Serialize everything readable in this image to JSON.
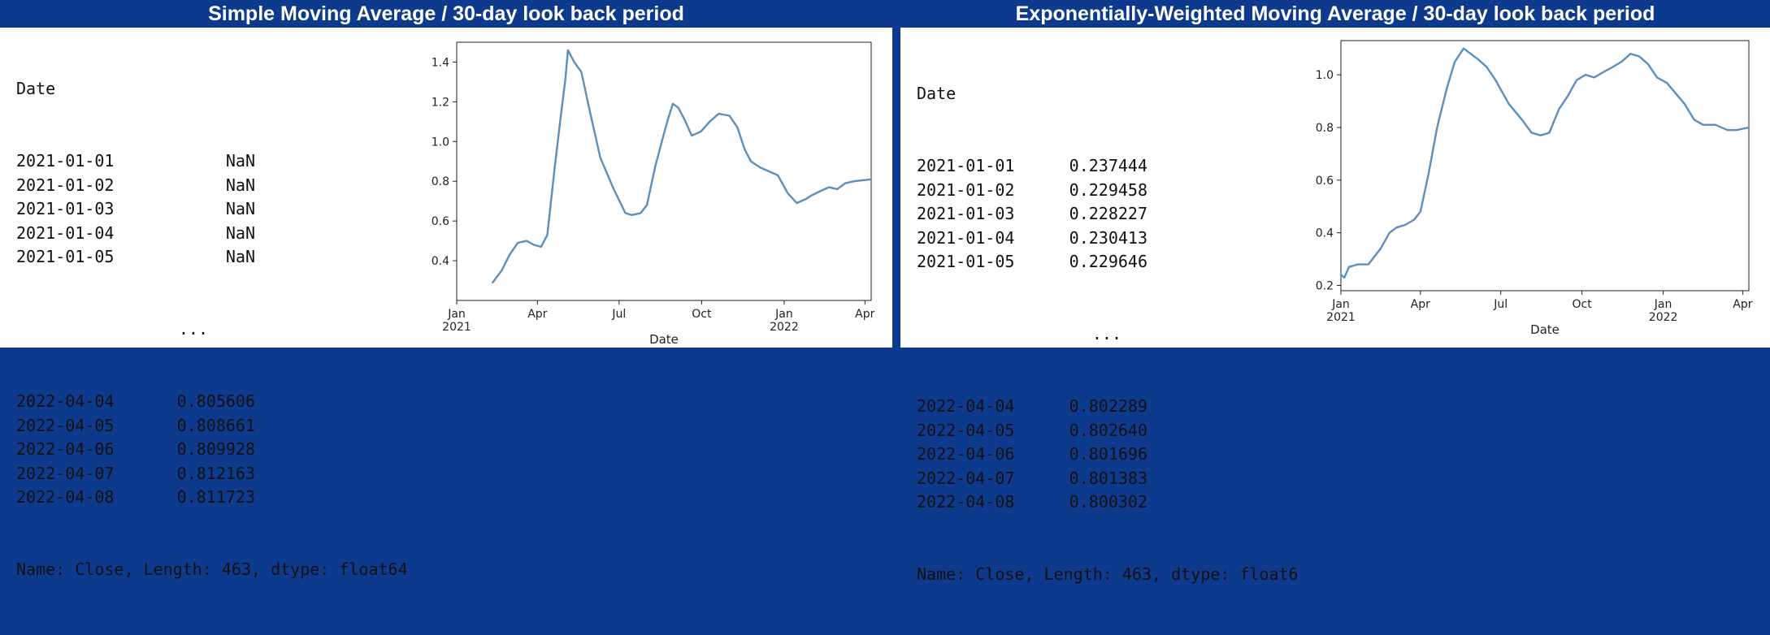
{
  "panels": [
    {
      "title": "Simple Moving Average / 30-day look back period",
      "output": {
        "index_name": "Date",
        "head": [
          {
            "date": "2021-01-01",
            "value": "NaN"
          },
          {
            "date": "2021-01-02",
            "value": "NaN"
          },
          {
            "date": "2021-01-03",
            "value": "NaN"
          },
          {
            "date": "2021-01-04",
            "value": "NaN"
          },
          {
            "date": "2021-01-05",
            "value": "NaN"
          }
        ],
        "ellipsis": "...",
        "tail": [
          {
            "date": "2022-04-04",
            "value": "0.805606"
          },
          {
            "date": "2022-04-05",
            "value": "0.808661"
          },
          {
            "date": "2022-04-06",
            "value": "0.809928"
          },
          {
            "date": "2022-04-07",
            "value": "0.812163"
          },
          {
            "date": "2022-04-08",
            "value": "0.811723"
          }
        ],
        "footer": "Name: Close, Length: 463, dtype: float64"
      }
    },
    {
      "title": "Exponentially-Weighted  Moving Average / 30-day look back period",
      "output": {
        "index_name": "Date",
        "head": [
          {
            "date": "2021-01-01",
            "value": "0.237444"
          },
          {
            "date": "2021-01-02",
            "value": "0.229458"
          },
          {
            "date": "2021-01-03",
            "value": "0.228227"
          },
          {
            "date": "2021-01-04",
            "value": "0.230413"
          },
          {
            "date": "2021-01-05",
            "value": "0.229646"
          }
        ],
        "ellipsis": "...",
        "tail": [
          {
            "date": "2022-04-04",
            "value": "0.802289"
          },
          {
            "date": "2022-04-05",
            "value": "0.802640"
          },
          {
            "date": "2022-04-06",
            "value": "0.801696"
          },
          {
            "date": "2022-04-07",
            "value": "0.801383"
          },
          {
            "date": "2022-04-08",
            "value": "0.800302"
          }
        ],
        "footer": "Name: Close, Length: 463, dtype: float6"
      }
    }
  ],
  "colors": {
    "banner": "#0e3a8e",
    "line": "#5b8fbd"
  },
  "chart_data": [
    {
      "type": "line",
      "xlabel": "Date",
      "ylabel": "",
      "xlim": [
        "2021-01-01",
        "2022-04-08"
      ],
      "ylim": [
        0.2,
        1.5
      ],
      "yticks": [
        0.4,
        0.6,
        0.8,
        1.0,
        1.2,
        1.4
      ],
      "ytick_labels": [
        "0.4",
        "0.6",
        "0.8",
        "1.0",
        "1.2",
        "1.4"
      ],
      "xticks": [
        {
          "date": "2021-01-01",
          "label": "Jan",
          "sublabel": "2021"
        },
        {
          "date": "2021-04-01",
          "label": "Apr",
          "sublabel": ""
        },
        {
          "date": "2021-07-01",
          "label": "Jul",
          "sublabel": ""
        },
        {
          "date": "2021-10-01",
          "label": "Oct",
          "sublabel": ""
        },
        {
          "date": "2022-01-01",
          "label": "Jan",
          "sublabel": "2022"
        },
        {
          "date": "2022-04-01",
          "label": "Apr",
          "sublabel": ""
        }
      ],
      "grid": false,
      "x": [
        "2021-02-10",
        "2021-02-20",
        "2021-03-01",
        "2021-03-10",
        "2021-03-20",
        "2021-03-28",
        "2021-04-05",
        "2021-04-12",
        "2021-04-20",
        "2021-04-27",
        "2021-05-02",
        "2021-05-05",
        "2021-05-12",
        "2021-05-20",
        "2021-05-28",
        "2021-06-10",
        "2021-06-25",
        "2021-07-08",
        "2021-07-15",
        "2021-07-25",
        "2021-08-01",
        "2021-08-10",
        "2021-08-20",
        "2021-08-25",
        "2021-08-30",
        "2021-09-05",
        "2021-09-12",
        "2021-09-20",
        "2021-09-30",
        "2021-10-10",
        "2021-10-20",
        "2021-11-01",
        "2021-11-10",
        "2021-11-18",
        "2021-11-25",
        "2021-12-05",
        "2021-12-15",
        "2021-12-25",
        "2022-01-05",
        "2022-01-15",
        "2022-01-25",
        "2022-02-01",
        "2022-02-10",
        "2022-02-20",
        "2022-03-01",
        "2022-03-10",
        "2022-03-20",
        "2022-04-08"
      ],
      "series": [
        {
          "values": [
            0.29,
            0.35,
            0.43,
            0.49,
            0.5,
            0.48,
            0.47,
            0.53,
            0.86,
            1.13,
            1.31,
            1.46,
            1.4,
            1.35,
            1.18,
            0.92,
            0.76,
            0.64,
            0.63,
            0.64,
            0.68,
            0.87,
            1.04,
            1.12,
            1.19,
            1.17,
            1.11,
            1.03,
            1.05,
            1.1,
            1.14,
            1.13,
            1.07,
            0.96,
            0.9,
            0.87,
            0.85,
            0.83,
            0.74,
            0.69,
            0.71,
            0.73,
            0.75,
            0.77,
            0.76,
            0.79,
            0.8,
            0.81
          ]
        }
      ]
    },
    {
      "type": "line",
      "xlabel": "Date",
      "ylabel": "",
      "xlim": [
        "2021-01-01",
        "2022-04-08"
      ],
      "ylim": [
        0.18,
        1.13
      ],
      "yticks": [
        0.2,
        0.4,
        0.6,
        0.8,
        1.0
      ],
      "ytick_labels": [
        "0.2",
        "0.4",
        "0.6",
        "0.8",
        "1.0"
      ],
      "xticks": [
        {
          "date": "2021-01-01",
          "label": "Jan",
          "sublabel": "2021"
        },
        {
          "date": "2021-04-01",
          "label": "Apr",
          "sublabel": ""
        },
        {
          "date": "2021-07-01",
          "label": "Jul",
          "sublabel": ""
        },
        {
          "date": "2021-10-01",
          "label": "Oct",
          "sublabel": ""
        },
        {
          "date": "2022-01-01",
          "label": "Jan",
          "sublabel": "2022"
        },
        {
          "date": "2022-04-01",
          "label": "Apr",
          "sublabel": ""
        }
      ],
      "grid": false,
      "x": [
        "2021-01-01",
        "2021-01-05",
        "2021-01-10",
        "2021-01-20",
        "2021-02-01",
        "2021-02-15",
        "2021-02-25",
        "2021-03-05",
        "2021-03-15",
        "2021-03-25",
        "2021-04-01",
        "2021-04-10",
        "2021-04-20",
        "2021-05-01",
        "2021-05-10",
        "2021-05-20",
        "2021-05-28",
        "2021-06-05",
        "2021-06-15",
        "2021-06-25",
        "2021-07-10",
        "2021-07-25",
        "2021-08-05",
        "2021-08-15",
        "2021-08-25",
        "2021-09-05",
        "2021-09-15",
        "2021-09-25",
        "2021-10-05",
        "2021-10-15",
        "2021-10-25",
        "2021-11-05",
        "2021-11-15",
        "2021-11-25",
        "2021-12-05",
        "2021-12-15",
        "2021-12-25",
        "2022-01-05",
        "2022-01-15",
        "2022-01-25",
        "2022-02-05",
        "2022-02-15",
        "2022-03-01",
        "2022-03-15",
        "2022-03-25",
        "2022-04-08"
      ],
      "series": [
        {
          "values": [
            0.24,
            0.23,
            0.27,
            0.28,
            0.28,
            0.34,
            0.4,
            0.42,
            0.43,
            0.45,
            0.48,
            0.62,
            0.8,
            0.95,
            1.05,
            1.1,
            1.08,
            1.06,
            1.03,
            0.98,
            0.89,
            0.83,
            0.78,
            0.77,
            0.78,
            0.87,
            0.92,
            0.98,
            1.0,
            0.99,
            1.01,
            1.03,
            1.05,
            1.08,
            1.07,
            1.04,
            0.99,
            0.97,
            0.93,
            0.89,
            0.83,
            0.81,
            0.81,
            0.79,
            0.79,
            0.8
          ]
        }
      ]
    }
  ]
}
